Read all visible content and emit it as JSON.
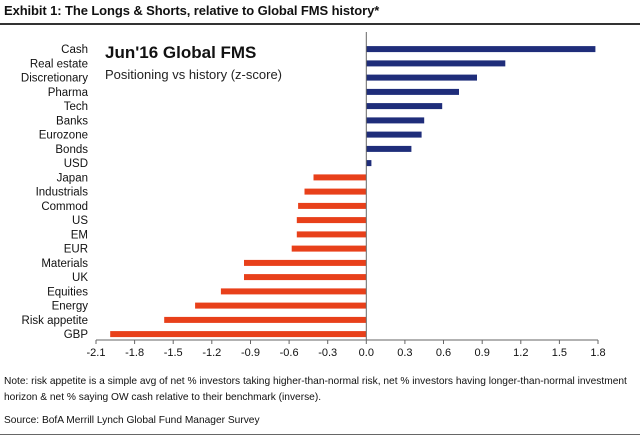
{
  "exhibit_title": "Exhibit 1: The Longs & Shorts, relative to Global FMS history*",
  "chart_data": {
    "type": "bar",
    "orientation": "horizontal",
    "title": "Jun'16 Global FMS",
    "subtitle": "Positioning vs history (z-score)",
    "categories": [
      "Cash",
      "Real estate",
      "Discretionary",
      "Pharma",
      "Tech",
      "Banks",
      "Eurozone",
      "Bonds",
      "USD",
      "Japan",
      "Industrials",
      "Commod",
      "US",
      "EM",
      "EUR",
      "Materials",
      "UK",
      "Equities",
      "Energy",
      "Risk appetite",
      "GBP"
    ],
    "values": [
      1.78,
      1.08,
      0.86,
      0.72,
      0.59,
      0.45,
      0.43,
      0.35,
      0.04,
      -0.41,
      -0.48,
      -0.53,
      -0.54,
      -0.54,
      -0.58,
      -0.95,
      -0.95,
      -1.13,
      -1.33,
      -1.57,
      -1.99
    ],
    "xlim": [
      -2.1,
      1.8
    ],
    "xticks": [
      -2.1,
      -1.8,
      -1.5,
      -1.2,
      -0.9,
      -0.6,
      -0.3,
      0.0,
      0.3,
      0.6,
      0.9,
      1.2,
      1.5,
      1.8
    ],
    "xtick_labels": [
      "-2.1",
      "-1.8",
      "-1.5",
      "-1.2",
      "-0.9",
      "-0.6",
      "-0.3",
      "0.0",
      "0.3",
      "0.6",
      "0.9",
      "1.2",
      "1.5",
      "1.8"
    ],
    "xlabel": "",
    "ylabel": "",
    "grid": false,
    "colors": {
      "positive": "#1f2d7a",
      "negative": "#e8401a"
    }
  },
  "note": "Note: risk appetite is a simple avg of net % investors taking higher-than-normal risk, net % investors having longer-than-normal investment horizon & net % saying OW cash relative to their benchmark (inverse).",
  "source": "Source: BofA Merrill Lynch Global Fund Manager Survey"
}
